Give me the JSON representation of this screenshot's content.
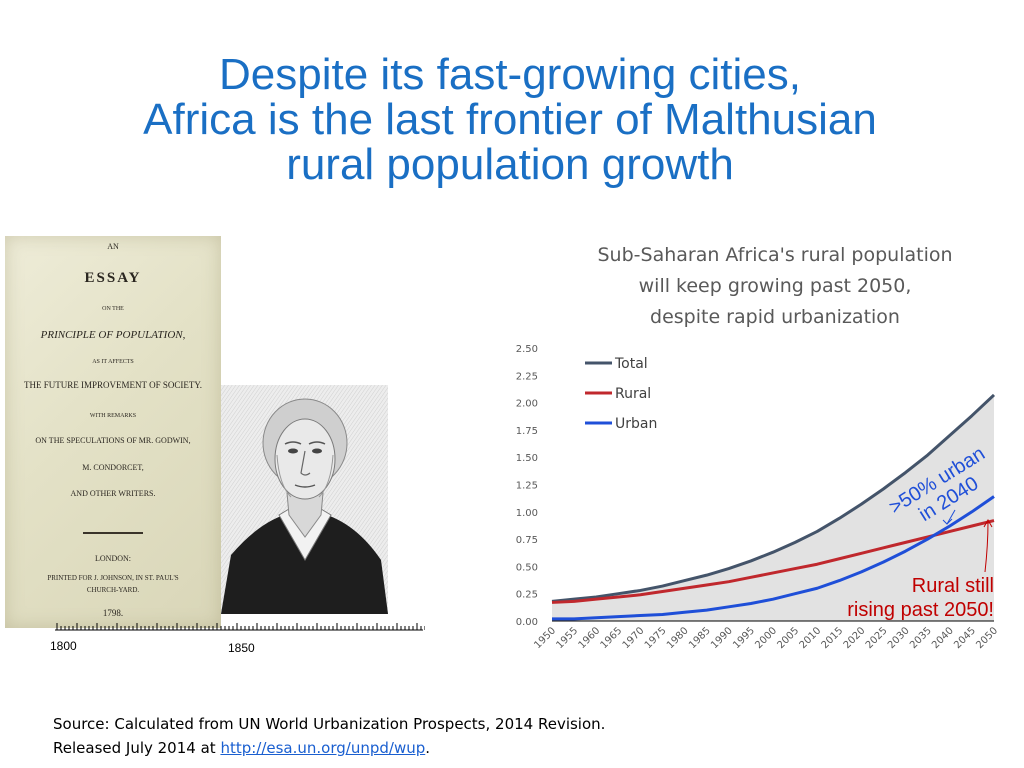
{
  "slide": {
    "title_line1": "Despite its fast-growing cities,",
    "title_line2": "Africa is the last frontier of Malthusian",
    "title_line3": "rural population growth"
  },
  "book": {
    "lines": [
      "AN",
      "ESSAY",
      "ON THE",
      "PRINCIPLE OF POPULATION,",
      "AS IT AFFECTS",
      "THE FUTURE IMPROVEMENT OF SOCIETY.",
      "WITH REMARKS",
      "ON THE SPECULATIONS OF MR. GODWIN,",
      "M. CONDORCET,",
      "AND OTHER WRITERS.",
      "LONDON:",
      "PRINTED FOR J. JOHNSON, IN ST. PAUL'S",
      "CHURCH-YARD.",
      "1798."
    ]
  },
  "timeline": {
    "label_start": "1800",
    "label_mid": "1850"
  },
  "annotations": {
    "urban_line1": ">50% urban",
    "urban_line2": "in 2040",
    "rural_line1": "Rural still",
    "rural_line2": "rising past 2050!"
  },
  "source": {
    "line1": "Source: Calculated  from UN World Urbanization Prospects, 2014 Revision.",
    "line2_prefix": "Released July 2014 at ",
    "link_text": "http://esa.un.org/unpd/wup",
    "line2_suffix": "."
  },
  "chart_data": {
    "type": "line",
    "title_line1": "Sub-Saharan Africa's rural population",
    "title_line2": "will keep growing past 2050,",
    "title_line3": "despite rapid urbanization",
    "xlabel": "",
    "ylabel": "",
    "ylim": [
      0,
      2.5
    ],
    "y_ticks": [
      "0.00",
      "0.25",
      "0.50",
      "0.75",
      "1.00",
      "1.25",
      "1.50",
      "1.75",
      "2.00",
      "2.25",
      "2.50"
    ],
    "x": [
      "1950",
      "1955",
      "1960",
      "1965",
      "1970",
      "1975",
      "1980",
      "1985",
      "1990",
      "1995",
      "2000",
      "2005",
      "2010",
      "2015",
      "2020",
      "2025",
      "2030",
      "2035",
      "2040",
      "2045",
      "2050"
    ],
    "legend_position": "top-left",
    "series": [
      {
        "name": "Total",
        "color": "#44546a",
        "values": [
          0.18,
          0.2,
          0.22,
          0.25,
          0.28,
          0.32,
          0.37,
          0.42,
          0.48,
          0.55,
          0.63,
          0.72,
          0.82,
          0.94,
          1.07,
          1.21,
          1.36,
          1.52,
          1.7,
          1.88,
          2.07
        ]
      },
      {
        "name": "Rural",
        "color": "#c0282d",
        "values": [
          0.17,
          0.18,
          0.2,
          0.22,
          0.24,
          0.27,
          0.3,
          0.33,
          0.36,
          0.4,
          0.44,
          0.48,
          0.52,
          0.57,
          0.62,
          0.67,
          0.72,
          0.77,
          0.82,
          0.87,
          0.92
        ]
      },
      {
        "name": "Urban",
        "color": "#1f4fd8",
        "values": [
          0.02,
          0.02,
          0.03,
          0.04,
          0.05,
          0.06,
          0.08,
          0.1,
          0.13,
          0.16,
          0.2,
          0.25,
          0.3,
          0.37,
          0.45,
          0.54,
          0.64,
          0.75,
          0.87,
          1.0,
          1.14
        ]
      }
    ],
    "fill_color": "#e2e2e2",
    "axis_color": "#000000",
    "tick_color": "#595959"
  }
}
